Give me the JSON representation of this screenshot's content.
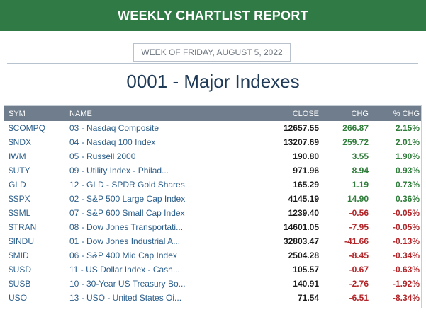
{
  "banner": {
    "title": "WEEKLY CHARTLIST REPORT"
  },
  "week": {
    "label": "WEEK OF FRIDAY, AUGUST 5, 2022"
  },
  "page": {
    "title": "0001 - Major Indexes"
  },
  "colors": {
    "banner": "#2f7a45",
    "header_bg": "#6f7d8c",
    "positive": "#2f7d3a",
    "negative": "#b2262a",
    "link": "#2b5e8a"
  },
  "table": {
    "headers": {
      "sym": "SYM",
      "name": "NAME",
      "close": "CLOSE",
      "chg": "CHG",
      "pct": "% CHG"
    },
    "rows": [
      {
        "sym": "$COMPQ",
        "name": "03 - Nasdaq Composite",
        "close": "12657.55",
        "chg": "266.87",
        "pct": "2.15%",
        "dir": "pos"
      },
      {
        "sym": "$NDX",
        "name": "04 - Nasdaq 100 Index",
        "close": "13207.69",
        "chg": "259.72",
        "pct": "2.01%",
        "dir": "pos"
      },
      {
        "sym": "IWM",
        "name": "05 - Russell 2000",
        "close": "190.80",
        "chg": "3.55",
        "pct": "1.90%",
        "dir": "pos"
      },
      {
        "sym": "$UTY",
        "name": "09 - Utility Index - Philad...",
        "close": "971.96",
        "chg": "8.94",
        "pct": "0.93%",
        "dir": "pos"
      },
      {
        "sym": "GLD",
        "name": "12 - GLD - SPDR Gold Shares",
        "close": "165.29",
        "chg": "1.19",
        "pct": "0.73%",
        "dir": "pos"
      },
      {
        "sym": "$SPX",
        "name": "02 - S&P 500 Large Cap Index",
        "close": "4145.19",
        "chg": "14.90",
        "pct": "0.36%",
        "dir": "pos"
      },
      {
        "sym": "$SML",
        "name": "07 - S&P 600 Small Cap Index",
        "close": "1239.40",
        "chg": "-0.56",
        "pct": "-0.05%",
        "dir": "neg"
      },
      {
        "sym": "$TRAN",
        "name": "08 - Dow Jones Transportati...",
        "close": "14601.05",
        "chg": "-7.95",
        "pct": "-0.05%",
        "dir": "neg"
      },
      {
        "sym": "$INDU",
        "name": "01 - Dow Jones Industrial A...",
        "close": "32803.47",
        "chg": "-41.66",
        "pct": "-0.13%",
        "dir": "neg"
      },
      {
        "sym": "$MID",
        "name": "06 - S&P 400 Mid Cap Index",
        "close": "2504.28",
        "chg": "-8.45",
        "pct": "-0.34%",
        "dir": "neg"
      },
      {
        "sym": "$USD",
        "name": "11 - US Dollar Index - Cash...",
        "close": "105.57",
        "chg": "-0.67",
        "pct": "-0.63%",
        "dir": "neg"
      },
      {
        "sym": "$USB",
        "name": "10 - 30-Year US Treasury Bo...",
        "close": "140.91",
        "chg": "-2.76",
        "pct": "-1.92%",
        "dir": "neg"
      },
      {
        "sym": "USO",
        "name": "13 - USO - United States Oi...",
        "close": "71.54",
        "chg": "-6.51",
        "pct": "-8.34%",
        "dir": "neg"
      }
    ]
  }
}
